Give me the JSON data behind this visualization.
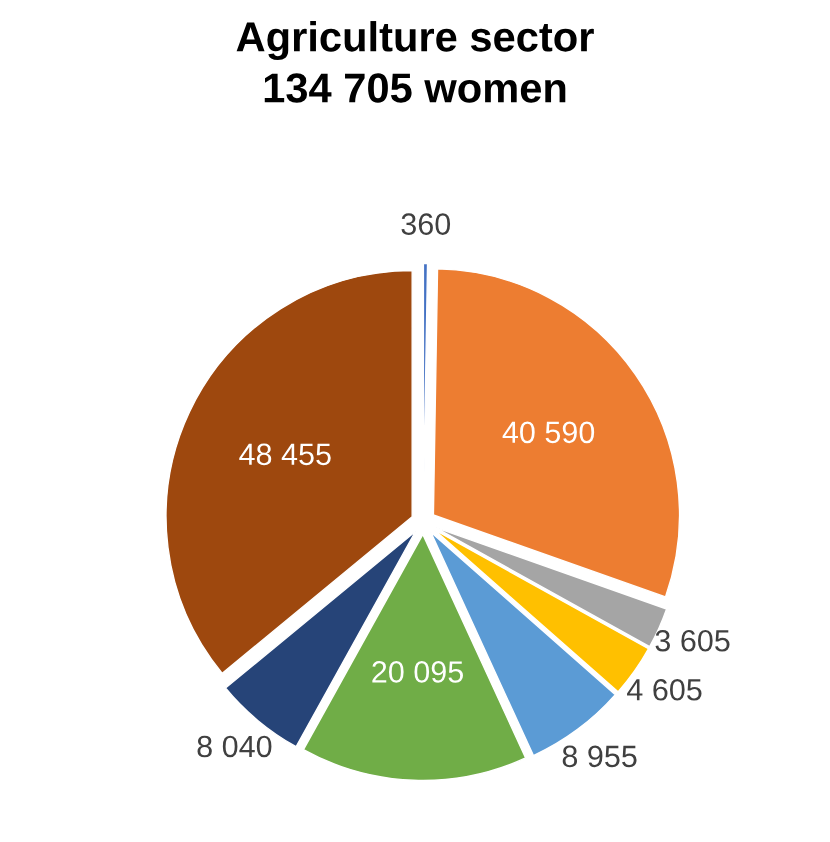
{
  "chart_data": {
    "type": "pie",
    "title": "Agriculture sector\n134 705 women",
    "categories": [
      null,
      null,
      null,
      null,
      null,
      null,
      null,
      null
    ],
    "values": [
      360,
      40590,
      3605,
      4605,
      8955,
      20095,
      8040,
      48455
    ],
    "value_labels": [
      "360",
      "40 590",
      "3 605",
      "4 605",
      "8 955",
      "20 095",
      "8 040",
      "48 455"
    ],
    "colors": [
      "#4472c4",
      "#ed7d31",
      "#a5a5a5",
      "#ffc000",
      "#5b9bd5",
      "#70ad47",
      "#264478",
      "#9e480e"
    ]
  }
}
